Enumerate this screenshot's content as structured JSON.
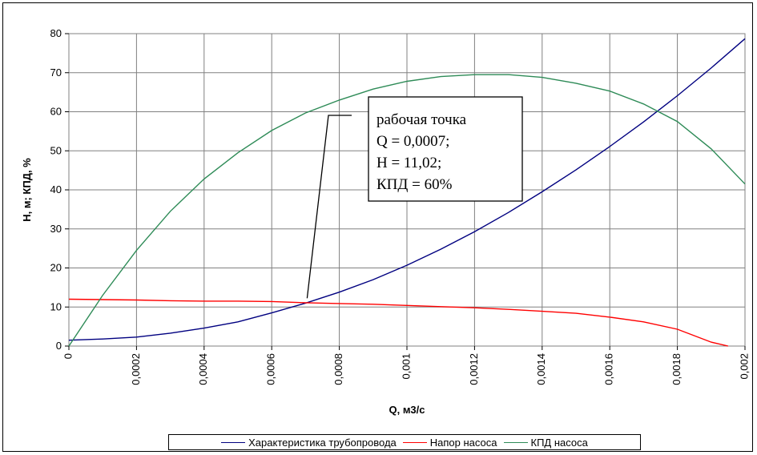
{
  "chart_data": {
    "type": "line",
    "title": "",
    "xlabel": "Q, м3/с",
    "ylabel": "Н, м; КПД, %",
    "xlim": [
      0,
      0.002
    ],
    "ylim": [
      0,
      80
    ],
    "grid": true,
    "legend_position": "bottom",
    "x_tick_labels": [
      "0",
      "0,0002",
      "0,0004",
      "0,0006",
      "0,0008",
      "0,001",
      "0,0012",
      "0,0014",
      "0,0016",
      "0,0018",
      "0,002"
    ],
    "y_tick_labels": [
      "0",
      "10",
      "20",
      "30",
      "40",
      "50",
      "60",
      "70",
      "80"
    ],
    "series": [
      {
        "name": "Характеристика трубопровода",
        "color": "#000080",
        "x": [
          0,
          0.0001,
          0.0002,
          0.0003,
          0.0004,
          0.0005,
          0.0006,
          0.0007,
          0.0008,
          0.0009,
          0.001,
          0.0011,
          0.0012,
          0.0013,
          0.0014,
          0.0015,
          0.0016,
          0.0017,
          0.0018,
          0.0019,
          0.002
        ],
        "values": [
          1.5,
          1.8,
          2.3,
          3.3,
          4.6,
          6.2,
          8.5,
          11.0,
          13.8,
          17.0,
          20.7,
          24.8,
          29.3,
          34.2,
          39.5,
          45.1,
          51.1,
          57.4,
          64.1,
          71.2,
          78.7
        ]
      },
      {
        "name": "Напор насоса",
        "color": "#ff0000",
        "x": [
          0,
          0.0001,
          0.0002,
          0.0003,
          0.0004,
          0.0005,
          0.0006,
          0.0007,
          0.0008,
          0.0009,
          0.001,
          0.0011,
          0.0012,
          0.0013,
          0.0014,
          0.0015,
          0.0016,
          0.0017,
          0.0018,
          0.0019,
          0.00195
        ],
        "values": [
          12.0,
          11.9,
          11.8,
          11.6,
          11.5,
          11.5,
          11.4,
          11.1,
          10.9,
          10.7,
          10.4,
          10.1,
          9.8,
          9.4,
          8.9,
          8.4,
          7.4,
          6.2,
          4.3,
          1.0,
          0
        ]
      },
      {
        "name": "КПД насоса",
        "color": "#2e8b57",
        "x": [
          0,
          0.0001,
          0.0002,
          0.0003,
          0.0004,
          0.0005,
          0.0006,
          0.0007,
          0.0008,
          0.0009,
          0.001,
          0.0011,
          0.0012,
          0.0013,
          0.0014,
          0.0015,
          0.0016,
          0.0017,
          0.0018,
          0.0019,
          0.002
        ],
        "values": [
          0,
          13.0,
          24.5,
          34.5,
          42.8,
          49.5,
          55.2,
          59.7,
          63.0,
          65.8,
          67.8,
          69.0,
          69.5,
          69.5,
          68.8,
          67.3,
          65.3,
          62.0,
          57.5,
          50.5,
          41.5
        ]
      }
    ],
    "annotation": {
      "lines": [
        "рабочая точка",
        "Q = 0,0007;",
        "H = 11,02;",
        "КПД = 60%"
      ],
      "point": [
        0.0007,
        11.02
      ]
    }
  }
}
